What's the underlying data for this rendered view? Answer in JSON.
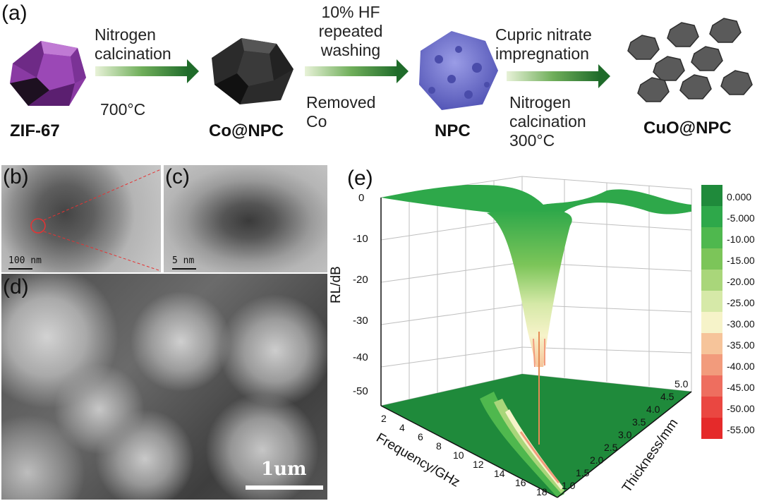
{
  "figure": {
    "panel_labels": {
      "a": "(a)",
      "b": "(b)",
      "c": "(c)",
      "d": "(d)",
      "e": "(e)"
    },
    "scheme": {
      "step1_top": [
        "Nitrogen",
        "calcination"
      ],
      "step1_bottom": "700°C",
      "step2_top": [
        "10% HF",
        "repeated",
        "washing"
      ],
      "step2_bottom": [
        "Removed",
        "Co"
      ],
      "step3_top": [
        "Cupric nitrate",
        "impregnation"
      ],
      "step3_bottom": [
        "Nitrogen",
        "calcination",
        "300°C"
      ],
      "materials": [
        "ZIF-67",
        "Co@NPC",
        "NPC",
        "CuO@NPC"
      ],
      "colors": {
        "zif67": "#8a3aa3",
        "conpc": "#2b2b2b",
        "npc": "#6f72c9",
        "cuonpc": "#5a5a5a",
        "arrow": "#2f7a2f"
      }
    },
    "micrographs": {
      "b_scale": "100 nm",
      "c_scale": "5 nm",
      "d_scale": "1um"
    }
  },
  "chart_data": {
    "type": "surface",
    "title": "",
    "xlabel": "Frequency/GHz",
    "ylabel": "Thickness/mm",
    "zlabel": "RL/dB",
    "x_ticks": [
      "2",
      "4",
      "6",
      "8",
      "10",
      "12",
      "14",
      "16",
      "18"
    ],
    "y_ticks": [
      "1.0",
      "1.5",
      "2.0",
      "2.5",
      "3.0",
      "3.5",
      "4.0",
      "4.5",
      "5.0"
    ],
    "z_ticks": [
      "0",
      "-10",
      "-20",
      "-30",
      "-40",
      "-50"
    ],
    "xlim": [
      2,
      18
    ],
    "ylim": [
      1.0,
      5.0
    ],
    "zlim": [
      -55,
      0
    ],
    "minimum": {
      "frequency": 14.2,
      "thickness": 2.1,
      "rl": -52
    },
    "colorbar": {
      "labels": [
        "0.000",
        "-5.000",
        "-10.00",
        "-15.00",
        "-20.00",
        "-25.00",
        "-30.00",
        "-35.00",
        "-40.00",
        "-45.00",
        "-50.00",
        "-55.00"
      ],
      "colors": [
        "#1f8a3b",
        "#2ea84a",
        "#4fb84e",
        "#7cc559",
        "#a9d67a",
        "#d6e9a8",
        "#f6f3c9",
        "#f6c49a",
        "#f29b7c",
        "#ee6e5f",
        "#ea4741",
        "#e52a2a"
      ]
    }
  }
}
